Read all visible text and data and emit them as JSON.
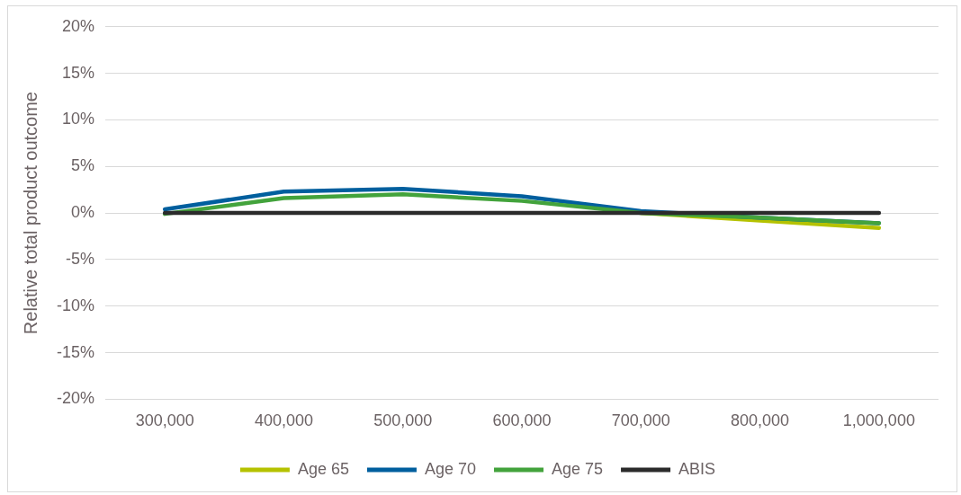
{
  "chart_data": {
    "type": "line",
    "ylabel": "Relative total product outcome",
    "categories": [
      "300,000",
      "400,000",
      "500,000",
      "600,000",
      "700,000",
      "800,000",
      "1,000,000"
    ],
    "series": [
      {
        "name": "Age 65",
        "color": "#b5c200",
        "values": [
          null,
          null,
          null,
          null,
          0,
          -0.8,
          -1.6
        ]
      },
      {
        "name": "Age 70",
        "color": "#005f9e",
        "values": [
          0.4,
          2.3,
          2.6,
          1.8,
          0.2,
          -0.5,
          -1.1
        ]
      },
      {
        "name": "Age 75",
        "color": "#43a33c",
        "values": [
          -0.1,
          1.6,
          2.0,
          1.3,
          0,
          -0.5,
          -1.1
        ]
      },
      {
        "name": "ABIS",
        "color": "#2b2b2b",
        "values": [
          0,
          0,
          0,
          0,
          0,
          0,
          0
        ]
      }
    ],
    "ylim": [
      -20,
      20
    ],
    "yticks": [
      {
        "value": -20,
        "label": "-20%"
      },
      {
        "value": -15,
        "label": "-15%"
      },
      {
        "value": -10,
        "label": "-10%"
      },
      {
        "value": -5,
        "label": "-5%"
      },
      {
        "value": 0,
        "label": "0%"
      },
      {
        "value": 5,
        "label": "5%"
      },
      {
        "value": 10,
        "label": "10%"
      },
      {
        "value": 15,
        "label": "15%"
      },
      {
        "value": 20,
        "label": "20%"
      }
    ],
    "grid": "y",
    "legend": "bottom",
    "marker": "none",
    "line_style": "solid"
  }
}
